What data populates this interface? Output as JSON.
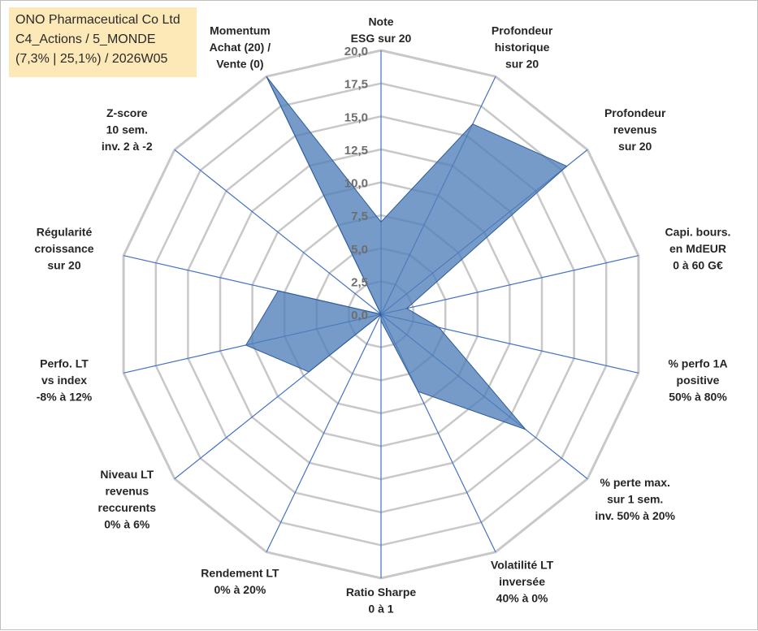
{
  "header": {
    "company": "ONO Pharmaceutical Co Ltd",
    "portfolio": "C4_Actions / 5_MONDE",
    "stats": "(7,3% | 25,1%) / 2026W05"
  },
  "colors": {
    "fill": "#4f7fba",
    "stroke": "#2e5c9a",
    "grid": "#c8c8c8",
    "spoke": "#4472c4",
    "title_bg": "#fde9b8"
  },
  "chart_data": {
    "type": "radar",
    "rmin": 0,
    "rmax": 20,
    "tick_step": 2.5,
    "tick_labels": [
      "0,0",
      "2,5",
      "5,0",
      "7,5",
      "10,0",
      "12,5",
      "15,0",
      "17,5",
      "20,0"
    ],
    "axes": [
      {
        "label": [
          "Note",
          "ESG sur 20"
        ],
        "value": 7.0
      },
      {
        "label": [
          "Profondeur",
          "historique",
          "sur 20"
        ],
        "value": 16.0
      },
      {
        "label": [
          "Profondeur",
          "revenus",
          "sur 20"
        ],
        "value": 18.0
      },
      {
        "label": [
          "Capi. bours.",
          "en MdEUR",
          "0 à 60 G€"
        ],
        "value": 2.0
      },
      {
        "label": [
          "% perfo 1A",
          "positive",
          "50% à 80%"
        ],
        "value": 4.5
      },
      {
        "label": [
          "% perte max.",
          "sur 1 sem.",
          "inv. 50% à 20%"
        ],
        "value": 14.0
      },
      {
        "label": [
          "Volatilité LT",
          "inversée",
          "40% à 0%"
        ],
        "value": 6.5
      },
      {
        "label": [
          "Ratio Sharpe",
          "0 à 1"
        ],
        "value": 0.5
      },
      {
        "label": [
          "Rendement LT",
          "0% à 20%"
        ],
        "value": 0.0
      },
      {
        "label": [
          "Niveau LT",
          "revenus",
          "reccurents",
          "0% à 6%"
        ],
        "value": 7.0
      },
      {
        "label": [
          "Perfo. LT",
          "vs index",
          "-8% à 12%"
        ],
        "value": 10.5
      },
      {
        "label": [
          "Régularité",
          "croissance",
          "sur 20"
        ],
        "value": 8.0
      },
      {
        "label": [
          "Z-score",
          "10 sem.",
          "inv. 2 à -2"
        ],
        "value": 0.0
      },
      {
        "label": [
          "Momentum",
          "Achat (20) /",
          "Vente (0)"
        ],
        "value": 20.0
      }
    ]
  }
}
